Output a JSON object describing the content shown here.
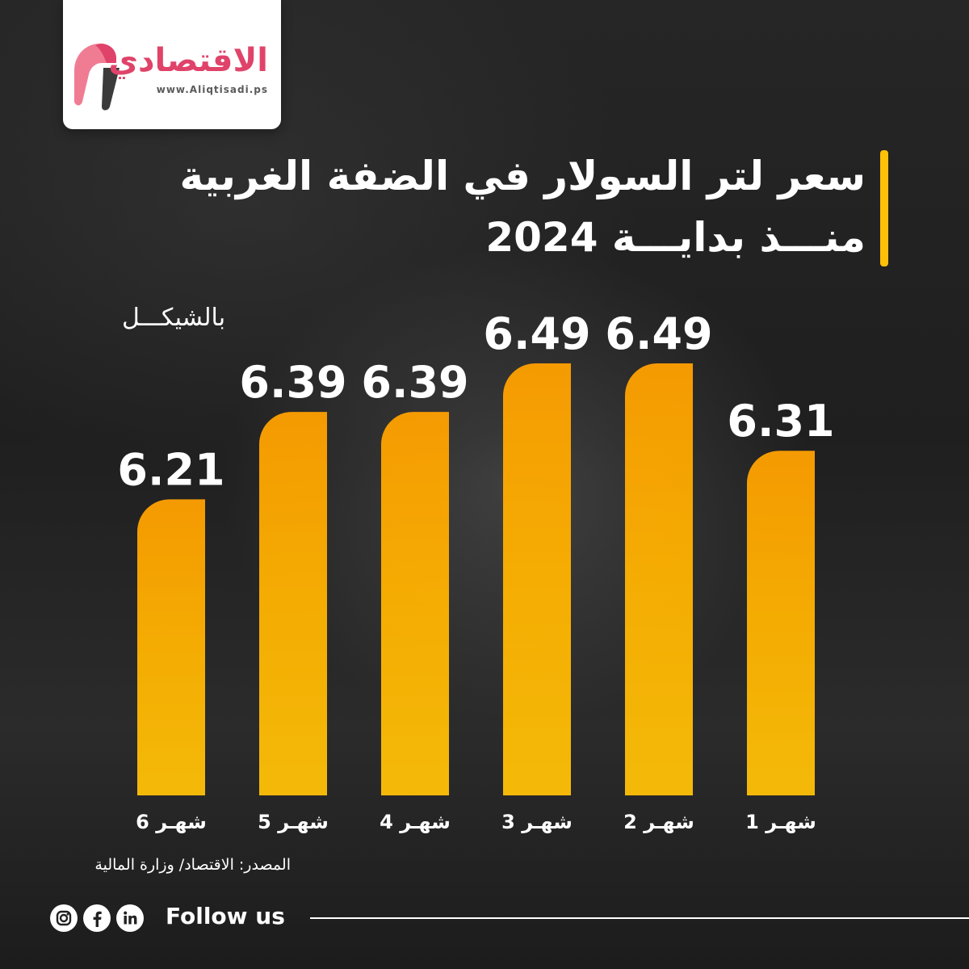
{
  "brand": {
    "name": "الاقتصادي",
    "url": "www.Aliqtisadi.ps",
    "accent_color": "#e0436a"
  },
  "chart_data": {
    "type": "bar",
    "title": [
      "سعر لتر السولار في الضفة الغربية",
      "منـــذ بدايـــة 2024"
    ],
    "unit": "بالشيكـــل",
    "categories": [
      "شهـر 6",
      "شهـر 5",
      "شهـر 4",
      "شهـر 3",
      "شهـر 2",
      "شهـر 1"
    ],
    "values": [
      6.21,
      6.39,
      6.39,
      6.49,
      6.49,
      6.31
    ],
    "value_labels": [
      "6.21",
      "6.39",
      "6.39",
      "6.49",
      "6.49",
      "6.31"
    ],
    "bar_color": "#ffb300",
    "ylim": [
      5.6,
      6.5
    ],
    "grid": false,
    "legend": "none"
  },
  "footer": {
    "source": "المصدر: الاقتصاد/ وزارة المالية",
    "follow": "Follow us",
    "social_icons": [
      "instagram-icon",
      "facebook-icon",
      "linkedin-icon"
    ]
  },
  "colors": {
    "background": "#222222",
    "title_accent": "#ffc107",
    "text": "#ffffff"
  }
}
